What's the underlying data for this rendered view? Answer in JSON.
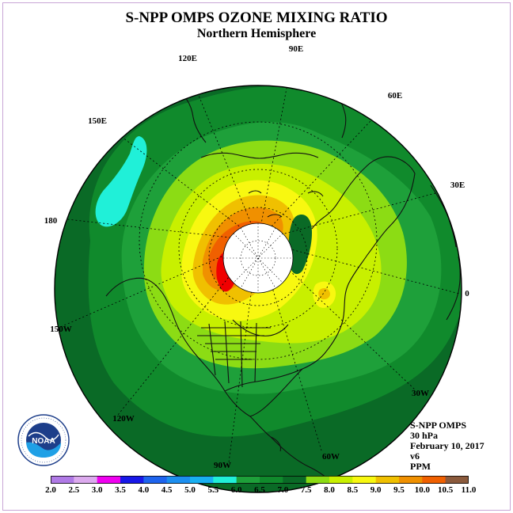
{
  "header": {
    "title": "S-NPP OMPS OZONE MIXING RATIO",
    "subtitle": "Northern Hemisphere"
  },
  "map": {
    "projection": "north-polar-stereographic",
    "longitude_labels": [
      "90E",
      "60E",
      "30E",
      "0",
      "30W",
      "60W",
      "90W",
      "120W",
      "150W",
      "180",
      "150E",
      "120E"
    ]
  },
  "info": {
    "instrument": "S-NPP OMPS",
    "pressure_level": "30 hPa",
    "date": "February 10, 2017",
    "version": "v6",
    "units": "PPM"
  },
  "colorbar": {
    "labels": [
      "2.0",
      "2.5",
      "3.0",
      "3.5",
      "4.0",
      "4.5",
      "5.0",
      "5.5",
      "6.0",
      "6.5",
      "7.0",
      "7.5",
      "8.0",
      "8.5",
      "9.0",
      "9.5",
      "10.0",
      "10.5",
      "11.0"
    ],
    "colors": [
      "#b07ae6",
      "#dcaaee",
      "#f000f0",
      "#1818e8",
      "#1e64ee",
      "#1c8ff0",
      "#18b0f2",
      "#20f0d8",
      "#1ea03a",
      "#108a2c",
      "#0a6a26",
      "#8cdc14",
      "#c8f000",
      "#f8f810",
      "#f0c000",
      "#f09000",
      "#f06000",
      "#f00000",
      "#8b5a3c"
    ],
    "unit": "PPM"
  },
  "logo": {
    "text": "NOAA"
  },
  "colors": {
    "green_dark": "#0a6a26",
    "green_mid": "#108a2c",
    "green_light": "#1ea03a",
    "lime": "#8cdc14",
    "yellow_green": "#c8f000",
    "yellow": "#f8f810",
    "orange": "#f09000",
    "red": "#f00000",
    "cyan": "#20f0d8"
  }
}
